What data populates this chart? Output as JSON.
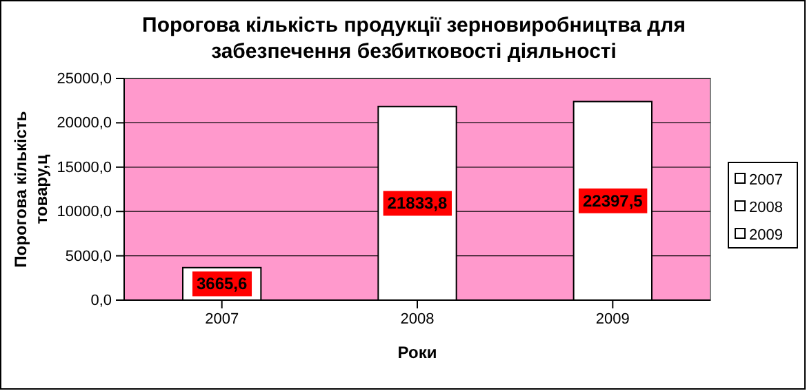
{
  "chart_data": {
    "type": "bar",
    "title": "Порогова кількість продукції зерновиробництва для забезпечення безбитковості діяльності",
    "xlabel": "Роки",
    "ylabel": "Порогова кількість товару,ц",
    "categories": [
      "2007",
      "2008",
      "2009"
    ],
    "series": [
      {
        "name": "2007",
        "color": "#ffffff",
        "values": [
          3665.6,
          null,
          null
        ],
        "value_labels": [
          "3665,6",
          null,
          null
        ]
      },
      {
        "name": "2008",
        "color": "#ffffff",
        "values": [
          null,
          21833.8,
          null
        ],
        "value_labels": [
          null,
          "21833,8",
          null
        ]
      },
      {
        "name": "2009",
        "color": "#ffffff",
        "values": [
          null,
          null,
          22397.5
        ],
        "value_labels": [
          null,
          null,
          "22397,5"
        ]
      }
    ],
    "ylim": [
      0,
      25000
    ],
    "yticks": [
      {
        "value": 0,
        "label": "0,0"
      },
      {
        "value": 5000,
        "label": "5000,0"
      },
      {
        "value": 10000,
        "label": "10000,0"
      },
      {
        "value": 15000,
        "label": "15000,0"
      },
      {
        "value": 20000,
        "label": "20000,0"
      },
      {
        "value": 25000,
        "label": "25000,0"
      }
    ],
    "grid": "y",
    "legend": "right"
  }
}
